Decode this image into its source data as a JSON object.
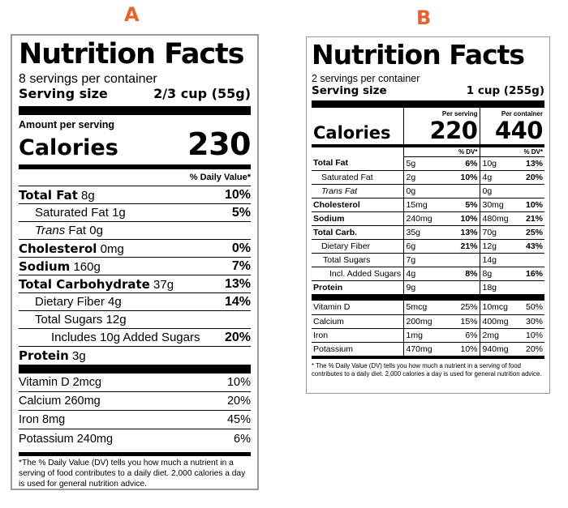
{
  "labels": {
    "a": "A",
    "b": "B"
  },
  "colors": {
    "letter": "#e8622b",
    "border": "#9a9a9a"
  },
  "a": {
    "title": "Nutrition Facts",
    "servings": "8 servings per container",
    "serving_size_label": "Serving size",
    "serving_size_value": "2/3 cup (55g)",
    "amount_per_serving": "Amount per serving",
    "calories_label": "Calories",
    "calories_value": "230",
    "dv_header": "% Daily Value*",
    "nutrients": [
      {
        "name": "Total Fat",
        "amount": "8g",
        "pct": "10%"
      },
      {
        "name": "Saturated Fat",
        "amount": "1g",
        "pct": "5%"
      },
      {
        "name": "Trans",
        "amount": "Fat 0g",
        "pct": ""
      },
      {
        "name": "Cholesterol",
        "amount": "0mg",
        "pct": "0%"
      },
      {
        "name": "Sodium",
        "amount": "160g",
        "pct": "7%"
      },
      {
        "name": "Total Carbohydrate",
        "amount": "37g",
        "pct": "13%"
      },
      {
        "name": "Dietary Fiber",
        "amount": "4g",
        "pct": "14%"
      },
      {
        "name": "Total Sugars",
        "amount": "12g",
        "pct": ""
      },
      {
        "name": "Includes 10g Added Sugars",
        "amount": "",
        "pct": "20%"
      },
      {
        "name": "Protein",
        "amount": "3g",
        "pct": ""
      }
    ],
    "vitamins": [
      {
        "name": "Vitamin D 2mcg",
        "pct": "10%"
      },
      {
        "name": "Calcium 260mg",
        "pct": "20%"
      },
      {
        "name": "Iron 8mg",
        "pct": "45%"
      },
      {
        "name": "Potassium 240mg",
        "pct": "6%"
      }
    ],
    "footnote": "*The % Daily Value (DV) tells you how much a nutrient in a serving of food contributes to a daily diet. 2,000 calories a day is used for general nutrition advice."
  },
  "b": {
    "title": "Nutrition Facts",
    "servings": "2 servings per container",
    "serving_size_label": "Serving size",
    "serving_size_value": "1 cup (255g)",
    "calories_label": "Calories",
    "per_serving_label": "Per serving",
    "per_container_label": "Per container",
    "per_serving_calories": "220",
    "per_container_calories": "440",
    "dv_label": "% DV*",
    "nutrients": [
      {
        "name": "Total Fat",
        "s_amt": "5g",
        "s_pct": "6%",
        "c_amt": "10g",
        "c_pct": "13%"
      },
      {
        "name": "Saturated Fat",
        "s_amt": "2g",
        "s_pct": "10%",
        "c_amt": "4g",
        "c_pct": "20%"
      },
      {
        "name": "Trans Fat",
        "s_amt": "0g",
        "s_pct": "",
        "c_amt": "0g",
        "c_pct": ""
      },
      {
        "name": "Cholesterol",
        "s_amt": "15mg",
        "s_pct": "5%",
        "c_amt": "30mg",
        "c_pct": "10%"
      },
      {
        "name": "Sodium",
        "s_amt": "240mg",
        "s_pct": "10%",
        "c_amt": "480mg",
        "c_pct": "21%"
      },
      {
        "name": "Total Carb.",
        "s_amt": "35g",
        "s_pct": "13%",
        "c_amt": "70g",
        "c_pct": "25%"
      },
      {
        "name": "Dietary Fiber",
        "s_amt": "6g",
        "s_pct": "21%",
        "c_amt": "12g",
        "c_pct": "43%"
      },
      {
        "name": "Total Sugars",
        "s_amt": "7g",
        "s_pct": "",
        "c_amt": "14g",
        "c_pct": ""
      },
      {
        "name": "Incl. Added Sugars",
        "s_amt": "4g",
        "s_pct": "8%",
        "c_amt": "8g",
        "c_pct": "16%"
      },
      {
        "name": "Protein",
        "s_amt": "9g",
        "s_pct": "",
        "c_amt": "18g",
        "c_pct": ""
      }
    ],
    "vitamins": [
      {
        "name": "Vitamin D",
        "s_amt": "5mcg",
        "s_pct": "25%",
        "c_amt": "10mcg",
        "c_pct": "50%"
      },
      {
        "name": "Calcium",
        "s_amt": "200mg",
        "s_pct": "15%",
        "c_amt": "400mg",
        "c_pct": "30%"
      },
      {
        "name": "Iron",
        "s_amt": "1mg",
        "s_pct": "6%",
        "c_amt": "2mg",
        "c_pct": "10%"
      },
      {
        "name": "Potassium",
        "s_amt": "470mg",
        "s_pct": "10%",
        "c_amt": "940mg",
        "c_pct": "20%"
      }
    ],
    "footnote": "* The % Daily Value (DV) tells you how much a nutrient in a serving of food contributes to a daily diet. 2,000 calories a day is used for general nutrition advice."
  }
}
